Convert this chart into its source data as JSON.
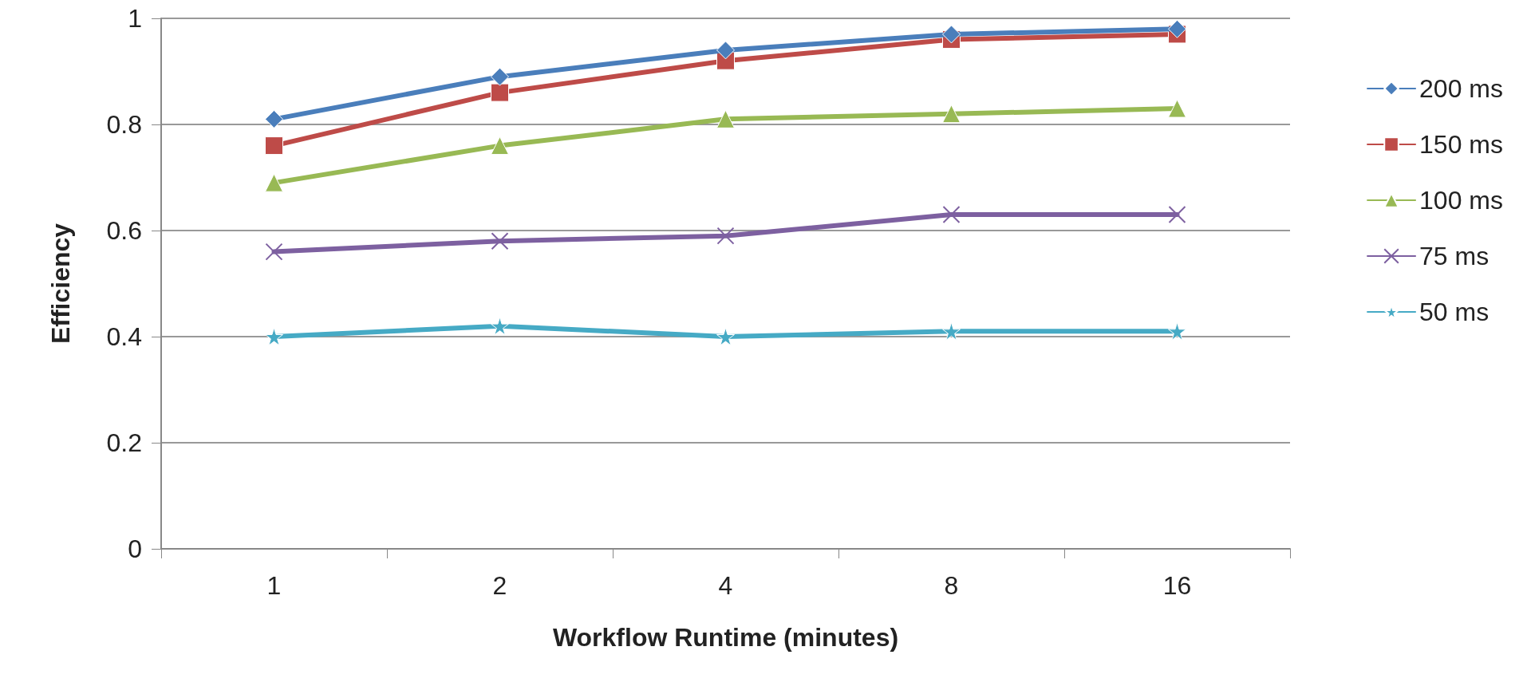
{
  "chart_data": {
    "type": "line",
    "xlabel": "Workflow Runtime (minutes)",
    "ylabel": "Efficiency",
    "categories": [
      "1",
      "2",
      "4",
      "8",
      "16"
    ],
    "series": [
      {
        "name": "200 ms",
        "color": "#4a7ebb",
        "marker": "diamond",
        "values": [
          0.81,
          0.89,
          0.94,
          0.97,
          0.98
        ]
      },
      {
        "name": "150 ms",
        "color": "#be4b48",
        "marker": "square",
        "values": [
          0.76,
          0.86,
          0.92,
          0.96,
          0.97
        ]
      },
      {
        "name": "100 ms",
        "color": "#98b954",
        "marker": "triangle",
        "values": [
          0.69,
          0.76,
          0.81,
          0.82,
          0.83
        ]
      },
      {
        "name": "75 ms",
        "color": "#7d60a0",
        "marker": "cross",
        "values": [
          0.56,
          0.58,
          0.59,
          0.63,
          0.63
        ]
      },
      {
        "name": "50 ms",
        "color": "#46aac5",
        "marker": "star",
        "values": [
          0.4,
          0.42,
          0.4,
          0.41,
          0.41
        ]
      }
    ],
    "ylim": [
      0,
      1
    ],
    "yticks": [
      0,
      0.2,
      0.4,
      0.6,
      0.8,
      1
    ],
    "grid": "y",
    "legend": "right"
  }
}
